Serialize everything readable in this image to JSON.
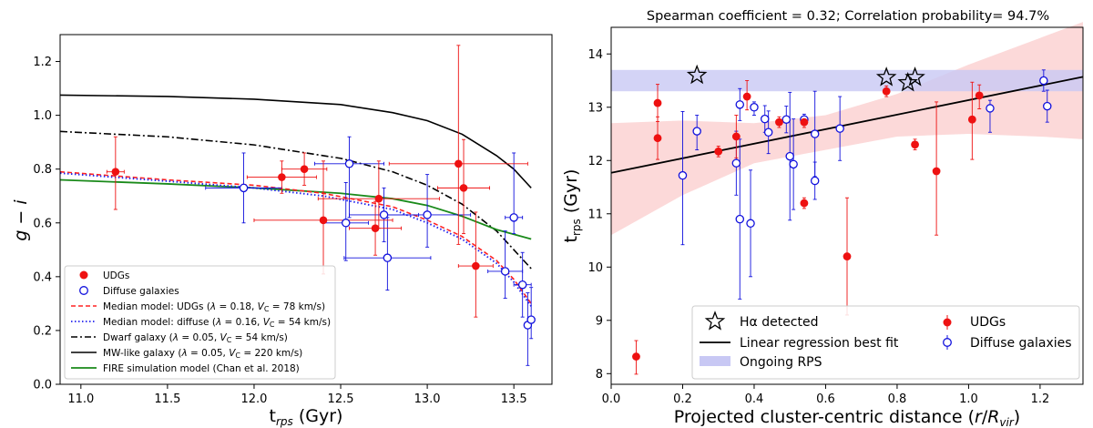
{
  "chart_data": [
    {
      "type": "scatter",
      "panel": "left",
      "xlabel": "t_rps (Gyr)",
      "ylabel": "g − i",
      "xlim": [
        10.88,
        13.72
      ],
      "ylim": [
        0.0,
        1.3
      ],
      "xticks": [
        "11.0",
        "11.5",
        "12.0",
        "12.5",
        "13.0",
        "13.5"
      ],
      "xtick_values": [
        11.0,
        11.5,
        12.0,
        12.5,
        13.0,
        13.5
      ],
      "yticks": [
        "0.0",
        "0.2",
        "0.4",
        "0.6",
        "0.8",
        "1.0",
        "1.2"
      ],
      "ytick_values": [
        0.0,
        0.2,
        0.4,
        0.6,
        0.8,
        1.0,
        1.2
      ],
      "colors": {
        "udg": "#ee1111",
        "diffuse": "#1111dd",
        "median_udg": "#ff2222",
        "median_diffuse": "#2222ee",
        "dwarf": "#000000",
        "mw": "#000000",
        "fire": "#1a8a1a"
      },
      "udgs": [
        {
          "x": 11.2,
          "y": 0.79,
          "xerr": 0.05,
          "yerr_lo": 0.14,
          "yerr_hi": 0.13
        },
        {
          "x": 12.16,
          "y": 0.77,
          "xerr": 0.2,
          "yerr_lo": 0.06,
          "yerr_hi": 0.06
        },
        {
          "x": 12.29,
          "y": 0.8,
          "xerr": 0.13,
          "yerr_lo": 0.06,
          "yerr_hi": 0.06
        },
        {
          "x": 12.4,
          "y": 0.61,
          "xerr": 0.4,
          "yerr_lo": 0.2,
          "yerr_hi": 0.22
        },
        {
          "x": 12.7,
          "y": 0.58,
          "xerr": 0.15,
          "yerr_lo": 0.1,
          "yerr_hi": 0.1
        },
        {
          "x": 12.72,
          "y": 0.69,
          "xerr": 0.35,
          "yerr_lo": 0.11,
          "yerr_hi": 0.14
        },
        {
          "x": 13.18,
          "y": 0.82,
          "xerr": 0.4,
          "yerr_lo": 0.3,
          "yerr_hi": 0.44
        },
        {
          "x": 13.21,
          "y": 0.73,
          "xerr": 0.15,
          "yerr_lo": 0.17,
          "yerr_hi": 0.18
        },
        {
          "x": 13.28,
          "y": 0.44,
          "xerr": 0.1,
          "yerr_lo": 0.19,
          "yerr_hi": 0.2
        }
      ],
      "diffuse": [
        {
          "x": 11.94,
          "y": 0.73,
          "xerr": 0.22,
          "yerr_lo": 0.13,
          "yerr_hi": 0.13
        },
        {
          "x": 12.53,
          "y": 0.6,
          "xerr": 0.13,
          "yerr_lo": 0.14,
          "yerr_hi": 0.15
        },
        {
          "x": 12.55,
          "y": 0.82,
          "xerr": 0.2,
          "yerr_lo": 0.2,
          "yerr_hi": 0.1
        },
        {
          "x": 12.75,
          "y": 0.63,
          "xerr": 0.2,
          "yerr_lo": 0.1,
          "yerr_hi": 0.1
        },
        {
          "x": 12.77,
          "y": 0.47,
          "xerr": 0.25,
          "yerr_lo": 0.12,
          "yerr_hi": 0.15
        },
        {
          "x": 13.0,
          "y": 0.63,
          "xerr": 0.25,
          "yerr_lo": 0.12,
          "yerr_hi": 0.15
        },
        {
          "x": 13.45,
          "y": 0.42,
          "xerr": 0.1,
          "yerr_lo": 0.1,
          "yerr_hi": 0.15
        },
        {
          "x": 13.5,
          "y": 0.62,
          "xerr": 0.05,
          "yerr_lo": 0.06,
          "yerr_hi": 0.24
        },
        {
          "x": 13.55,
          "y": 0.37,
          "xerr": 0.05,
          "yerr_lo": 0.12,
          "yerr_hi": 0.12
        },
        {
          "x": 13.58,
          "y": 0.22,
          "xerr": 0.02,
          "yerr_lo": 0.15,
          "yerr_hi": 0.12
        },
        {
          "x": 13.6,
          "y": 0.24,
          "xerr": 0.02,
          "yerr_lo": 0.07,
          "yerr_hi": 0.12
        }
      ],
      "curves": {
        "median_udg": {
          "x": [
            10.88,
            11.5,
            12.0,
            12.4,
            12.8,
            13.0,
            13.2,
            13.4,
            13.5,
            13.6
          ],
          "y": [
            0.79,
            0.76,
            0.74,
            0.71,
            0.66,
            0.61,
            0.55,
            0.46,
            0.39,
            0.3
          ]
        },
        "median_diffuse": {
          "x": [
            10.88,
            11.5,
            12.0,
            12.4,
            12.8,
            13.0,
            13.2,
            13.4,
            13.5,
            13.6
          ],
          "y": [
            0.785,
            0.755,
            0.73,
            0.7,
            0.65,
            0.6,
            0.54,
            0.45,
            0.38,
            0.29
          ]
        },
        "dwarf": {
          "x": [
            10.88,
            11.5,
            12.0,
            12.5,
            12.8,
            13.0,
            13.2,
            13.4,
            13.5,
            13.6
          ],
          "y": [
            0.94,
            0.92,
            0.89,
            0.84,
            0.79,
            0.74,
            0.67,
            0.57,
            0.5,
            0.43
          ]
        },
        "mw": {
          "x": [
            10.88,
            11.5,
            12.0,
            12.5,
            12.8,
            13.0,
            13.2,
            13.4,
            13.5,
            13.6
          ],
          "y": [
            1.075,
            1.07,
            1.06,
            1.04,
            1.01,
            0.98,
            0.93,
            0.85,
            0.8,
            0.73
          ]
        },
        "fire": {
          "x": [
            10.88,
            11.5,
            12.0,
            12.5,
            12.8,
            13.0,
            13.2,
            13.4,
            13.6
          ],
          "y": [
            0.76,
            0.745,
            0.73,
            0.71,
            0.69,
            0.665,
            0.625,
            0.575,
            0.54
          ]
        }
      },
      "legend": {
        "position": "lower-left",
        "udgs": "UDGs",
        "diffuse": "Diffuse galaxies",
        "median_udg": "Median model: UDGs (λ = 0.18, V_C = 78 km/s)",
        "median_diffuse": "Median model: diffuse (λ = 0.16, V_C = 54 km/s)",
        "dwarf": "Dwarf galaxy (λ = 0.05, V_C = 54 km/s)",
        "mw": "MW-like galaxy (λ = 0.05, V_C = 220 km/s)",
        "fire": "FIRE simulation model (Chan et al. 2018)"
      }
    },
    {
      "type": "scatter",
      "panel": "right",
      "title": "Spearman coefficient = 0.32;  Correlation probability= 94.7%",
      "xlabel": "Projected cluster-centric distance (r/R_vir)",
      "ylabel": "t_rps (Gyr)",
      "xlim": [
        0.0,
        1.32
      ],
      "ylim": [
        7.8,
        14.5
      ],
      "xticks": [
        "0.0",
        "0.2",
        "0.4",
        "0.6",
        "0.8",
        "1.0",
        "1.2"
      ],
      "xtick_values": [
        0.0,
        0.2,
        0.4,
        0.6,
        0.8,
        1.0,
        1.2
      ],
      "yticks": [
        "8",
        "9",
        "10",
        "11",
        "12",
        "13",
        "14"
      ],
      "ytick_values": [
        8,
        9,
        10,
        11,
        12,
        13,
        14
      ],
      "colors": {
        "udg": "#ee1111",
        "diffuse": "#1111dd",
        "fit": "#000000",
        "band_rps": "#c8c8f4",
        "band_ci": "#fbd2d2"
      },
      "ongoing_rps_band": [
        13.3,
        13.7
      ],
      "fit_line": {
        "x": [
          0.0,
          1.32
        ],
        "y": [
          11.77,
          13.57
        ]
      },
      "confidence_band": {
        "x": [
          0.0,
          0.2,
          0.4,
          0.6,
          0.8,
          1.0,
          1.2,
          1.32
        ],
        "lower": [
          10.6,
          11.35,
          11.95,
          12.2,
          12.45,
          12.5,
          12.45,
          12.4
        ],
        "upper": [
          12.7,
          12.75,
          12.7,
          12.85,
          13.25,
          13.8,
          14.3,
          14.6
        ]
      },
      "halpha": [
        {
          "x": 0.24,
          "y": 13.6
        },
        {
          "x": 0.77,
          "y": 13.56
        },
        {
          "x": 0.83,
          "y": 13.46
        },
        {
          "x": 0.85,
          "y": 13.56
        }
      ],
      "udgs": [
        {
          "x": 0.07,
          "y": 8.32,
          "yerr_lo": 0.33,
          "yerr_hi": 0.3
        },
        {
          "x": 0.13,
          "y": 12.42,
          "yerr_lo": 0.4,
          "yerr_hi": 0.4
        },
        {
          "x": 0.13,
          "y": 13.08,
          "yerr_lo": 0.35,
          "yerr_hi": 0.35
        },
        {
          "x": 0.3,
          "y": 12.17,
          "yerr_lo": 0.1,
          "yerr_hi": 0.1
        },
        {
          "x": 0.35,
          "y": 12.45,
          "yerr_lo": 0.4,
          "yerr_hi": 0.4
        },
        {
          "x": 0.38,
          "y": 13.2,
          "yerr_lo": 0.25,
          "yerr_hi": 0.3
        },
        {
          "x": 0.47,
          "y": 12.72,
          "yerr_lo": 0.1,
          "yerr_hi": 0.1
        },
        {
          "x": 0.54,
          "y": 11.2,
          "yerr_lo": 0.1,
          "yerr_hi": 0.1
        },
        {
          "x": 0.54,
          "y": 12.72,
          "yerr_lo": 0.1,
          "yerr_hi": 0.1
        },
        {
          "x": 0.66,
          "y": 10.2,
          "yerr_lo": 1.1,
          "yerr_hi": 1.1
        },
        {
          "x": 0.77,
          "y": 13.3,
          "yerr_lo": 0.1,
          "yerr_hi": 0.1
        },
        {
          "x": 0.85,
          "y": 12.3,
          "yerr_lo": 0.1,
          "yerr_hi": 0.1
        },
        {
          "x": 0.91,
          "y": 11.8,
          "yerr_lo": 1.2,
          "yerr_hi": 1.3
        },
        {
          "x": 1.01,
          "y": 12.77,
          "yerr_lo": 0.75,
          "yerr_hi": 0.7
        },
        {
          "x": 1.03,
          "y": 13.22,
          "yerr_lo": 0.25,
          "yerr_hi": 0.2
        }
      ],
      "diffuse": [
        {
          "x": 0.2,
          "y": 11.72,
          "yerr_lo": 1.3,
          "yerr_hi": 1.2
        },
        {
          "x": 0.24,
          "y": 12.55,
          "yerr_lo": 0.35,
          "yerr_hi": 0.3
        },
        {
          "x": 0.35,
          "y": 11.95,
          "yerr_lo": 0.6,
          "yerr_hi": 0.6
        },
        {
          "x": 0.36,
          "y": 10.9,
          "yerr_lo": 1.5,
          "yerr_hi": 1.5
        },
        {
          "x": 0.36,
          "y": 13.05,
          "yerr_lo": 0.3,
          "yerr_hi": 0.3
        },
        {
          "x": 0.39,
          "y": 10.82,
          "yerr_lo": 1.0,
          "yerr_hi": 1.0
        },
        {
          "x": 0.4,
          "y": 13.0,
          "yerr_lo": 0.15,
          "yerr_hi": 0.1
        },
        {
          "x": 0.43,
          "y": 12.78,
          "yerr_lo": 0.25,
          "yerr_hi": 0.25
        },
        {
          "x": 0.44,
          "y": 12.53,
          "yerr_lo": 0.4,
          "yerr_hi": 0.4
        },
        {
          "x": 0.49,
          "y": 12.77,
          "yerr_lo": 0.25,
          "yerr_hi": 0.25
        },
        {
          "x": 0.5,
          "y": 12.08,
          "yerr_lo": 1.2,
          "yerr_hi": 1.2
        },
        {
          "x": 0.51,
          "y": 11.93,
          "yerr_lo": 0.85,
          "yerr_hi": 0.85
        },
        {
          "x": 0.54,
          "y": 12.77,
          "yerr_lo": 0.1,
          "yerr_hi": 0.1
        },
        {
          "x": 0.57,
          "y": 11.62,
          "yerr_lo": 0.35,
          "yerr_hi": 0.35
        },
        {
          "x": 0.57,
          "y": 12.5,
          "yerr_lo": 0.8,
          "yerr_hi": 0.8
        },
        {
          "x": 0.64,
          "y": 12.6,
          "yerr_lo": 0.6,
          "yerr_hi": 0.6
        },
        {
          "x": 1.06,
          "y": 12.98,
          "yerr_lo": 0.45,
          "yerr_hi": 0.15
        },
        {
          "x": 1.21,
          "y": 13.5,
          "yerr_lo": 0.2,
          "yerr_hi": 0.2
        },
        {
          "x": 1.22,
          "y": 13.02,
          "yerr_lo": 0.3,
          "yerr_hi": 0.3
        }
      ],
      "legend": {
        "position": "lower-right",
        "halpha": "Hα detected",
        "fit": "Linear regression best fit",
        "rps": "Ongoing RPS",
        "udgs": "UDGs",
        "diffuse": "Diffuse galaxies"
      }
    }
  ]
}
